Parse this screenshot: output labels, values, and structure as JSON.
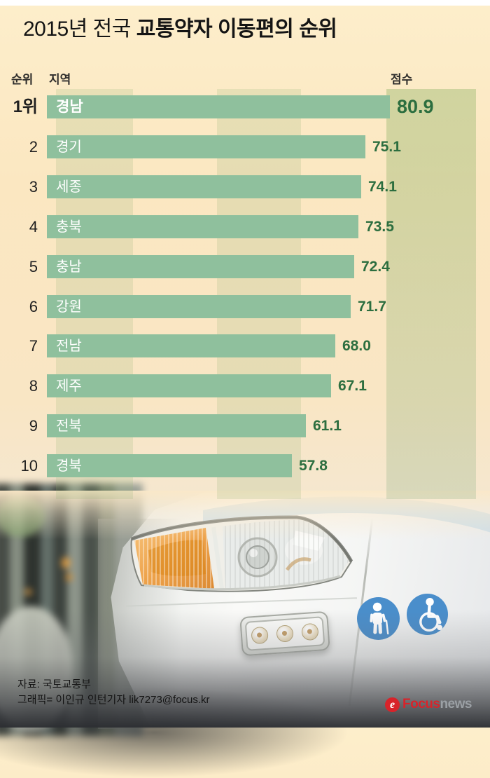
{
  "title": {
    "regular": "2015년 전국",
    "bold": "교통약자 이동편의 순위"
  },
  "table_headers": {
    "rank": "순위",
    "region": "지역",
    "score": "점수"
  },
  "chart_data": {
    "type": "bar",
    "orientation": "horizontal",
    "title": "2015년 전국 교통약자 이동편의 순위",
    "categories": [
      "경남",
      "경기",
      "세종",
      "충북",
      "충남",
      "강원",
      "전남",
      "제주",
      "전북",
      "경북"
    ],
    "rank_labels": [
      "1위",
      "2",
      "3",
      "4",
      "5",
      "6",
      "7",
      "8",
      "9",
      "10"
    ],
    "values": [
      80.9,
      75.1,
      74.1,
      73.5,
      72.4,
      71.7,
      68.0,
      67.1,
      61.1,
      57.8
    ],
    "value_labels": [
      "80.9",
      "75.1",
      "74.1",
      "73.5",
      "72.4",
      "71.7",
      "68.0",
      "67.1",
      "61.1",
      "57.8"
    ],
    "xlim": [
      0,
      80.9
    ],
    "grid": "vertical pale-green stripes",
    "legend": "none",
    "bar_color": "#8fc09d",
    "bar_label_color": "#ffffff",
    "value_text_color": "#2c6e3f"
  },
  "photo": {
    "badge_color": "#4a8ecb",
    "badge_left": "elderly-person-with-cane",
    "badge_right": "wheelchair-symbol"
  },
  "footer": {
    "source": "자료: 국토교통부",
    "credit": "그래픽= 이인규 인턴기자 lik7273@focus.kr"
  },
  "logo": {
    "symbol": "e",
    "text_primary": "Focus",
    "text_secondary": "news",
    "color": "#d8232a"
  }
}
